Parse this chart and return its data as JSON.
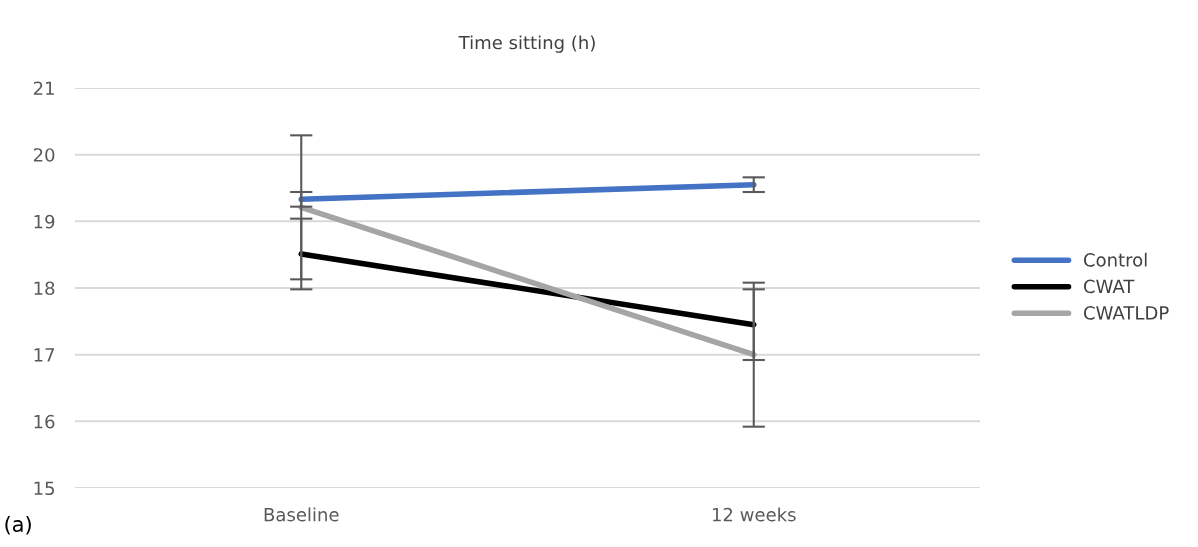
{
  "chart_data": {
    "type": "line",
    "title": "Time sitting (h)",
    "categories": [
      "Baseline",
      "12 weeks"
    ],
    "series": [
      {
        "name": "Control",
        "color": "#4472c4",
        "values": [
          19.33,
          19.55
        ],
        "errors": [
          0.11,
          0.11
        ]
      },
      {
        "name": "CWAT",
        "color": "#000000",
        "values": [
          18.51,
          17.45
        ],
        "errors": [
          0.53,
          0.53
        ]
      },
      {
        "name": "CWATLDP",
        "color": "#a5a5a5",
        "values": [
          19.21,
          17.0
        ],
        "errors": [
          1.08,
          1.08
        ]
      }
    ],
    "ylim": [
      15,
      21
    ],
    "yticks": [
      15,
      16,
      17,
      18,
      19,
      20,
      21
    ],
    "grid": "y",
    "legend": "right",
    "marker": "none",
    "annotations": [
      "(a)"
    ]
  }
}
